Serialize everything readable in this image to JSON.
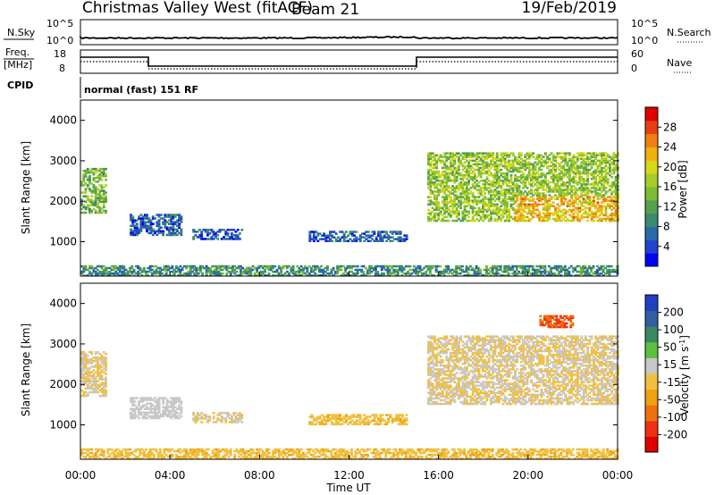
{
  "header": {
    "station": "Christmas Valley West (fitACF)",
    "beam": "Beam 21",
    "date": "19/Feb/2019"
  },
  "top_panels": {
    "nsky_label": "N.Sky",
    "nsky_ticks": [
      "10^5",
      "10^0"
    ],
    "nsearch_label": "N.Search",
    "nsearch_ticks": [
      "10^5",
      "10^0"
    ],
    "freq_label": "Freq.",
    "freq_unit": "[MHz]",
    "freq_ticks": [
      "18",
      "8"
    ],
    "nave_label": "Nave",
    "nave_ticks": [
      "60",
      "0"
    ],
    "cpid_label": "CPID",
    "cpid_value": "normal (fast) 151 RF"
  },
  "chart_data": [
    {
      "type": "heatmap",
      "panel": "power",
      "title": "",
      "xlabel": "",
      "ylabel": "Slant Range [km]",
      "ylim": [
        150,
        4500
      ],
      "yticks": [
        1000,
        2000,
        3000,
        4000
      ],
      "colorbar": {
        "label": "Power [dB]",
        "ticks": [
          "4",
          "8",
          "12",
          "16",
          "20",
          "24",
          "28"
        ],
        "colors": [
          "#0000ff",
          "#2244cc",
          "#2a6aa8",
          "#3a8a70",
          "#55a050",
          "#7cbc36",
          "#a8cc28",
          "#d8d818",
          "#f0b010",
          "#f08010",
          "#e84010",
          "#e00000"
        ]
      },
      "echo_regions": [
        {
          "start_h": 0.0,
          "end_h": 1.1,
          "range_low_km": 1700,
          "range_high_km": 2800,
          "value": 14
        },
        {
          "start_h": 2.2,
          "end_h": 4.5,
          "range_low_km": 1150,
          "range_high_km": 1650,
          "value": 6
        },
        {
          "start_h": 5.0,
          "end_h": 7.2,
          "range_low_km": 1050,
          "range_high_km": 1300,
          "value": 6
        },
        {
          "start_h": 10.2,
          "end_h": 14.6,
          "range_low_km": 1000,
          "range_high_km": 1250,
          "value": 6
        },
        {
          "start_h": 15.5,
          "end_h": 24.0,
          "range_low_km": 1500,
          "range_high_km": 3200,
          "value": 16
        },
        {
          "start_h": 0.0,
          "end_h": 24.0,
          "range_low_km": 150,
          "range_high_km": 400,
          "value": 10
        }
      ]
    },
    {
      "type": "heatmap",
      "panel": "velocity",
      "title": "",
      "xlabel": "Time UT",
      "ylabel": "Slant Range [km]",
      "ylim": [
        150,
        4500
      ],
      "yticks": [
        1000,
        2000,
        3000,
        4000
      ],
      "xticks": [
        "00:00",
        "04:00",
        "08:00",
        "12:00",
        "16:00",
        "20:00",
        "00:00"
      ],
      "colorbar": {
        "label": "Velocity [m s",
        "label_sup": "-1",
        "label_end": "]",
        "ticks": [
          "200",
          "100",
          "50",
          "15",
          "-15",
          "-50",
          "-100",
          "-200"
        ],
        "colors": [
          "#2040c0",
          "#3060a0",
          "#3a8a60",
          "#5cc040",
          "#c8c8c8",
          "#f0c040",
          "#f0a010",
          "#f07010",
          "#f03010",
          "#e00000"
        ]
      },
      "echo_regions": [
        {
          "start_h": 0.0,
          "end_h": 1.1,
          "range_low_km": 1700,
          "range_high_km": 2800,
          "value": 0
        },
        {
          "start_h": 2.2,
          "end_h": 4.5,
          "range_low_km": 1150,
          "range_high_km": 1650,
          "value": 30
        },
        {
          "start_h": 5.0,
          "end_h": 7.2,
          "range_low_km": 1050,
          "range_high_km": 1300,
          "value": 0
        },
        {
          "start_h": 10.2,
          "end_h": 14.6,
          "range_low_km": 1000,
          "range_high_km": 1250,
          "value": -40
        },
        {
          "start_h": 15.5,
          "end_h": 24.0,
          "range_low_km": 1500,
          "range_high_km": 3200,
          "value": 0
        },
        {
          "start_h": 20.5,
          "end_h": 22.0,
          "range_low_km": 3400,
          "range_high_km": 3700,
          "value": -150
        },
        {
          "start_h": 0.0,
          "end_h": 24.0,
          "range_low_km": 150,
          "range_high_km": 400,
          "value": -40
        }
      ]
    }
  ]
}
